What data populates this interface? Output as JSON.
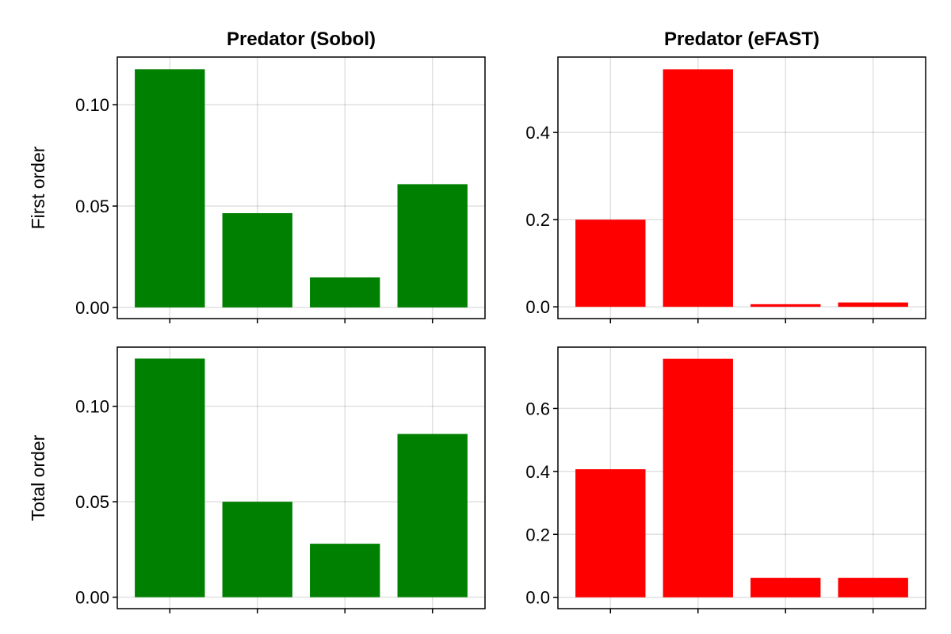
{
  "colors": {
    "sobol": "#008000",
    "efast": "#ff0000"
  },
  "columns": [
    "Predator (Sobol)",
    "Predator (eFAST)"
  ],
  "rows": [
    "First order",
    "Total order"
  ],
  "chart_data": [
    {
      "type": "bar",
      "panel": "first-order-sobol",
      "color": "#008000",
      "values": [
        0.1175,
        0.0465,
        0.0148,
        0.0608
      ],
      "ylim": [
        -0.0055,
        0.1235
      ],
      "yticks": [
        0.0,
        0.05,
        0.1
      ],
      "ytick_labels": [
        "0.00",
        "0.05",
        "0.10"
      ],
      "grid": true
    },
    {
      "type": "bar",
      "panel": "first-order-efast",
      "color": "#ff0000",
      "values": [
        0.2,
        0.545,
        0.006,
        0.01
      ],
      "ylim": [
        -0.027,
        0.573
      ],
      "yticks": [
        0.0,
        0.2,
        0.4
      ],
      "ytick_labels": [
        "0.0",
        "0.2",
        "0.4"
      ],
      "grid": true
    },
    {
      "type": "bar",
      "panel": "total-order-sobol",
      "color": "#008000",
      "values": [
        0.125,
        0.05,
        0.028,
        0.0855
      ],
      "ylim": [
        -0.006,
        0.131
      ],
      "yticks": [
        0.0,
        0.05,
        0.1
      ],
      "ytick_labels": [
        "0.00",
        "0.05",
        "0.10"
      ],
      "grid": true
    },
    {
      "type": "bar",
      "panel": "total-order-efast",
      "color": "#ff0000",
      "values": [
        0.407,
        0.758,
        0.062,
        0.062
      ],
      "ylim": [
        -0.036,
        0.795
      ],
      "yticks": [
        0.0,
        0.2,
        0.4,
        0.6
      ],
      "ytick_labels": [
        "0.0",
        "0.2",
        "0.4",
        "0.6"
      ],
      "grid": true
    }
  ]
}
